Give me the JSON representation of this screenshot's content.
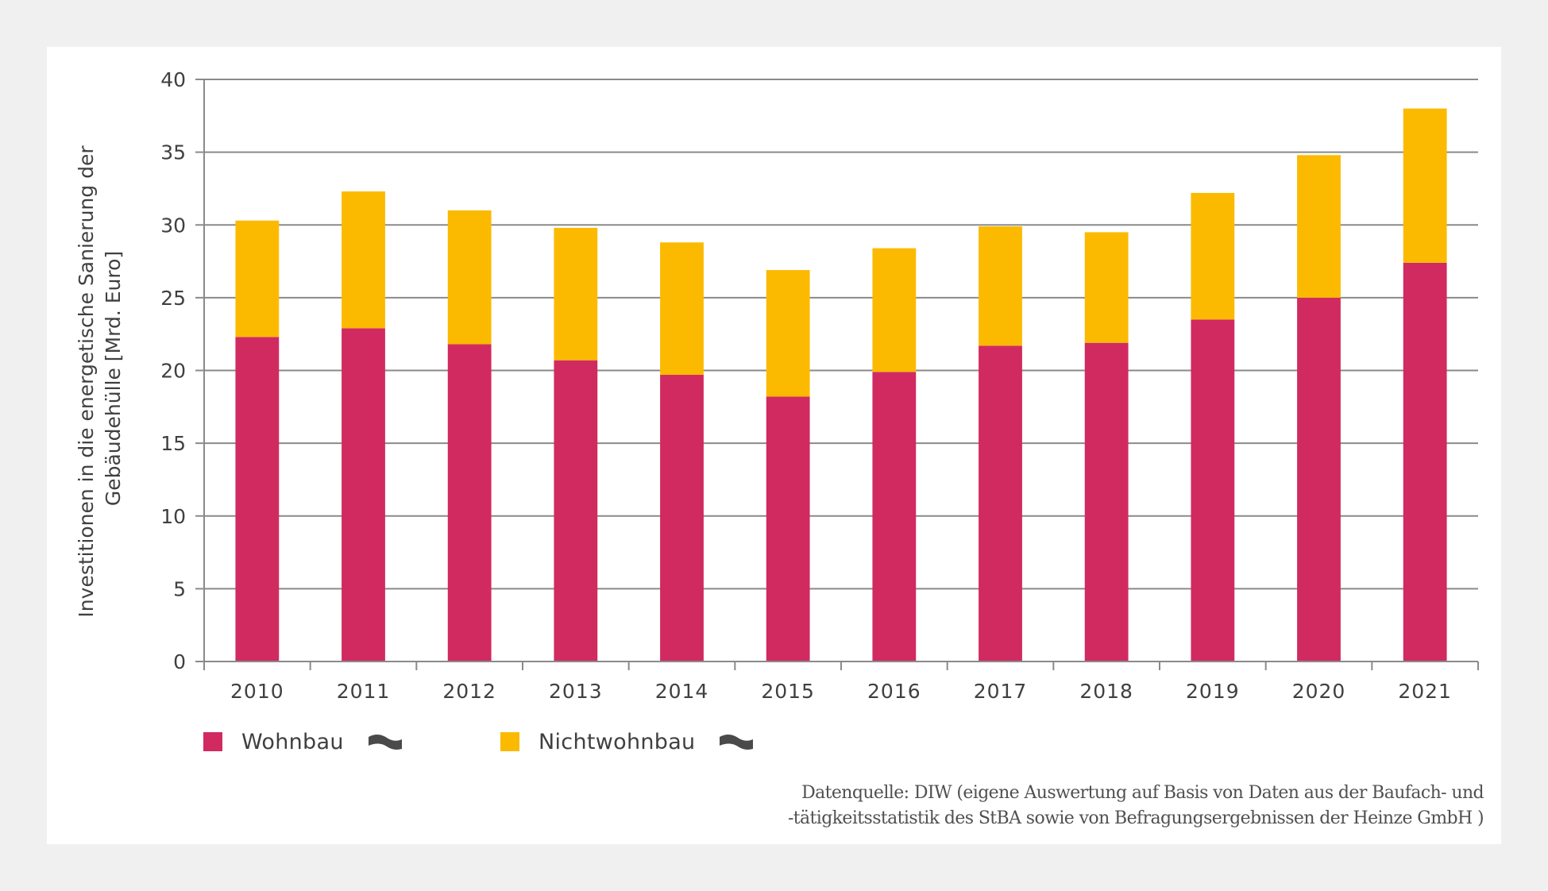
{
  "chart_data": {
    "type": "bar",
    "stacked": true,
    "title": "",
    "xlabel": "",
    "ylabel": "Investitionen in die energetische Sanierung der Gebäudehülle [Mrd. Euro]",
    "ylabel_lines": [
      "Investitionen in die energetische Sanierung der",
      "Gebäudehülle [Mrd. Euro]"
    ],
    "categories": [
      "2010",
      "2011",
      "2012",
      "2013",
      "2014",
      "2015",
      "2016",
      "2017",
      "2018",
      "2019",
      "2020",
      "2021"
    ],
    "series": [
      {
        "name": "Wohnbau",
        "color": "#d12a60",
        "values": [
          22.3,
          22.9,
          21.8,
          20.7,
          19.7,
          18.2,
          19.9,
          21.7,
          21.9,
          23.5,
          25.0,
          27.4
        ]
      },
      {
        "name": "Nichtwohnbau",
        "color": "#fbba00",
        "values": [
          8.0,
          9.4,
          9.2,
          9.1,
          9.1,
          8.7,
          8.5,
          8.2,
          7.6,
          8.7,
          9.8,
          10.6
        ]
      }
    ],
    "totals": [
      30.3,
      32.3,
      31.0,
      29.8,
      28.8,
      26.9,
      28.4,
      29.9,
      29.5,
      32.2,
      34.8,
      38.0
    ],
    "ylim": [
      0,
      40
    ],
    "yticks": [
      0,
      5,
      10,
      15,
      20,
      25,
      30,
      35,
      40
    ],
    "grid": true,
    "legend_position": "bottom-left",
    "legend_icon": "wave-flag-icon",
    "source_note": [
      "Datenquelle: DIW (eigene Auswertung auf Basis von Daten aus der Baufach- und",
      "-tätigkeitsstatistik des StBA sowie von Befragungsergebnissen der Heinze GmbH )"
    ]
  },
  "legend": [
    {
      "label": "Wohnbau",
      "color": "#d12a60",
      "icon": "wave-flag-icon"
    },
    {
      "label": "Nichtwohnbau",
      "color": "#fbba00",
      "icon": "wave-flag-icon"
    }
  ],
  "colors": {
    "background": "#f0f0f0",
    "card": "#ffffff",
    "grid": "#8a8a8a",
    "text": "#404040",
    "icon": "#4a4a4a"
  }
}
